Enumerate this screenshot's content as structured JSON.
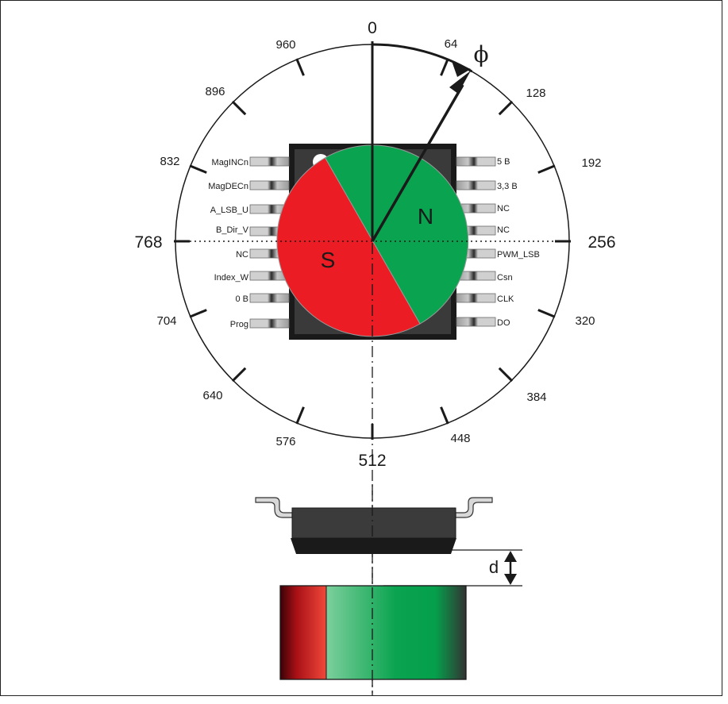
{
  "dial": {
    "tick_labels": [
      "0",
      "64",
      "128",
      "192",
      "256",
      "320",
      "384",
      "448",
      "512",
      "576",
      "640",
      "704",
      "768",
      "832",
      "896",
      "960"
    ],
    "angle_symbol": "ϕ"
  },
  "magnet": {
    "north": "N",
    "south": "S"
  },
  "chip": {
    "left_pins": [
      "MagINCn",
      "MagDECn",
      "A_LSB_U",
      "B_Dir_V",
      "NC",
      "Index_W",
      "0 B",
      "Prog"
    ],
    "right_pins": [
      "5 B",
      "3,3 B",
      "NC",
      "NC",
      "PWM_LSB",
      "Csn",
      "CLK",
      "DO"
    ]
  },
  "side_view": {
    "gap_label": "d"
  },
  "colors": {
    "north": "#0aa34f",
    "south": "#ec1c24",
    "chip_body": "#3a3a3a",
    "outline": "#1a1a1a"
  }
}
